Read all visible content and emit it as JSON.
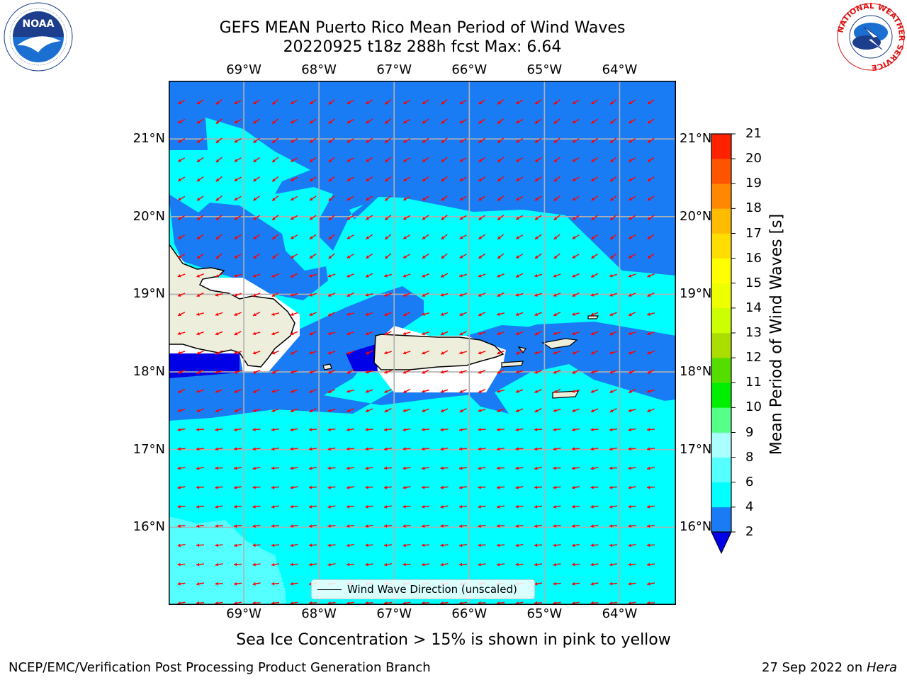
{
  "header": {
    "title_line1": "GEFS MEAN Puerto Rico Mean Period of Wind Waves",
    "title_line2": "20220925 t18z 288h fcst   Max: 6.64"
  },
  "map": {
    "lon_labels_top": [
      "69°W",
      "68°W",
      "67°W",
      "66°W",
      "65°W",
      "64°W"
    ],
    "lon_labels_bottom": [
      "69°W",
      "68°W",
      "67°W",
      "66°W",
      "65°W",
      "64°W"
    ],
    "lat_labels_left": [
      "21°N",
      "20°N",
      "19°N",
      "18°N",
      "17°N",
      "16°N"
    ],
    "lat_labels_right": [
      "21°N",
      "20°N",
      "19°N",
      "18°N",
      "17°N",
      "16°N"
    ],
    "lon_values": [
      -69,
      -68,
      -67,
      -66,
      -65,
      -64
    ],
    "lat_values": [
      21,
      20,
      19,
      18,
      17,
      16
    ],
    "extent": {
      "lon_min": -70.0,
      "lon_max": -63.25,
      "lat_min": 15.0,
      "lat_max": 21.75
    },
    "colors": {
      "ocean_2_4": "#1a7cf5",
      "ocean_4_6": "#00ffff",
      "ocean_6_8": "#55ffff",
      "below_2": "#0000e6",
      "land": "#eeeedd",
      "arrow": "#ff0000",
      "grid": "#b0b0b0"
    },
    "legend_label": "Wind Wave Direction (unscaled)"
  },
  "colorbar": {
    "title": "Mean Period of Wind Waves [s]",
    "ticks": [
      "21",
      "20",
      "19",
      "18",
      "17",
      "16",
      "15",
      "14",
      "13",
      "12",
      "11",
      "10",
      "9",
      "8",
      "6",
      "4",
      "2"
    ],
    "levels": [
      2,
      4,
      6,
      8,
      9,
      10,
      11,
      12,
      13,
      14,
      15,
      16,
      17,
      18,
      19,
      20,
      21
    ],
    "colors": [
      "#1a7cf5",
      "#00ffff",
      "#55ffff",
      "#aaffff",
      "#55ff88",
      "#00ee00",
      "#55dd00",
      "#aadd00",
      "#ccff00",
      "#eeff00",
      "#ffff00",
      "#ffdd00",
      "#ffbb00",
      "#ff8800",
      "#ff5500",
      "#ff2200"
    ],
    "under_color": "#0000e6"
  },
  "notes": {
    "sea_ice": "Sea Ice Concentration > 15% is shown in pink to yellow"
  },
  "footer": {
    "left": "NCEP/EMC/Verification Post Processing Product Generation Branch",
    "date": "27 Sep 2022 on ",
    "machine": "Hera"
  },
  "logos": {
    "noaa_text": "NOAA",
    "nws_ring_text": "NATIONAL WEATHER SERVICE"
  }
}
